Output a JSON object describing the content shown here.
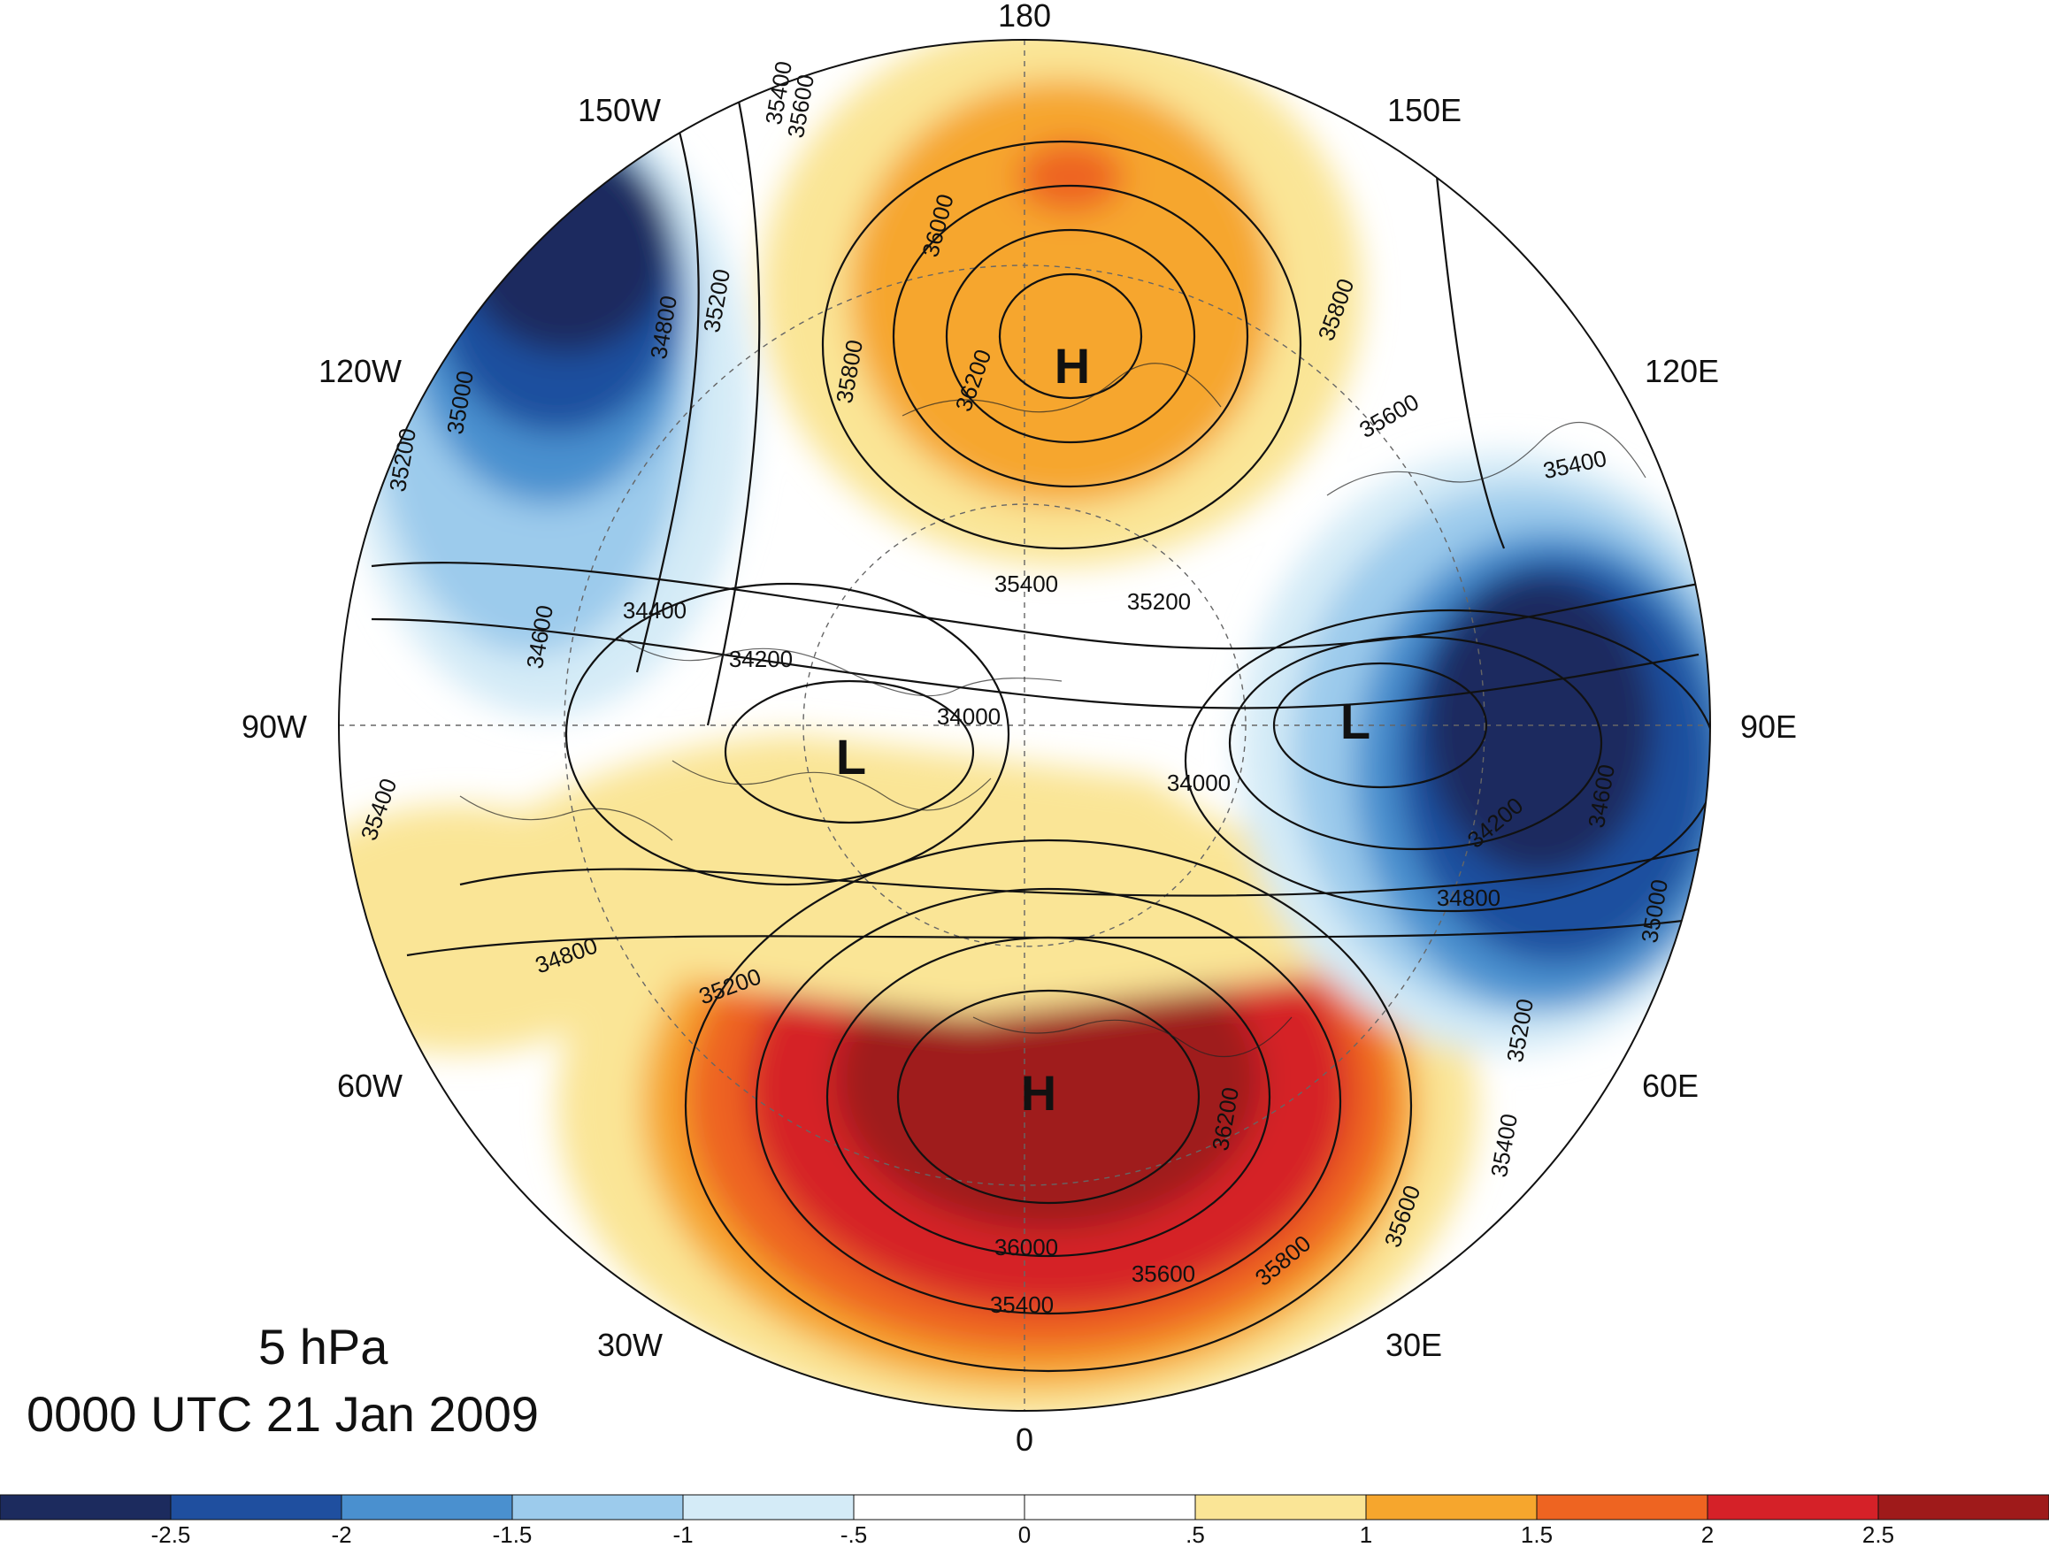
{
  "title": {
    "level": "5 hPa",
    "valid_time": "0000 UTC 21 Jan 2009"
  },
  "longitude_labels": {
    "lon_180": "180",
    "lon_150e": "150E",
    "lon_120e": "120E",
    "lon_90e": "90E",
    "lon_60e": "60E",
    "lon_30e": "30E",
    "lon_0": "0",
    "lon_30w": "30W",
    "lon_60w": "60W",
    "lon_90w": "90W",
    "lon_120w": "120W",
    "lon_150w": "150W"
  },
  "pressure_centers": [
    {
      "label": "H",
      "region": "north Pacific / 180"
    },
    {
      "label": "L",
      "region": "north Canada / 90W"
    },
    {
      "label": "L",
      "region": "Siberia / 90E"
    },
    {
      "label": "H",
      "region": "Europe / 0"
    }
  ],
  "contour_labels": [
    "35400",
    "36000",
    "35600",
    "35200",
    "34800",
    "35000",
    "35200",
    "35800",
    "36200",
    "35800",
    "35600",
    "35400",
    "34400",
    "34600",
    "34200",
    "34000",
    "35400",
    "35200",
    "34000",
    "34200",
    "34600",
    "34800",
    "35000",
    "35200",
    "35400",
    "35600",
    "35800",
    "36200",
    "36000",
    "35600",
    "35400",
    "35200",
    "34800",
    "35400"
  ],
  "colorbar": {
    "colors": [
      "#1c2b5e",
      "#1f4f9f",
      "#4a90cf",
      "#9ccbec",
      "#d4ebf7",
      "#ffffff",
      "#ffffff",
      "#fae596",
      "#f6a62d",
      "#ee6421",
      "#d52128",
      "#9f1a1a"
    ],
    "ticks": [
      "-2.5",
      "-2",
      "-1.5",
      "-1",
      "-.5",
      "0",
      ".5",
      "1",
      "1.5",
      "2",
      "2.5"
    ]
  }
}
